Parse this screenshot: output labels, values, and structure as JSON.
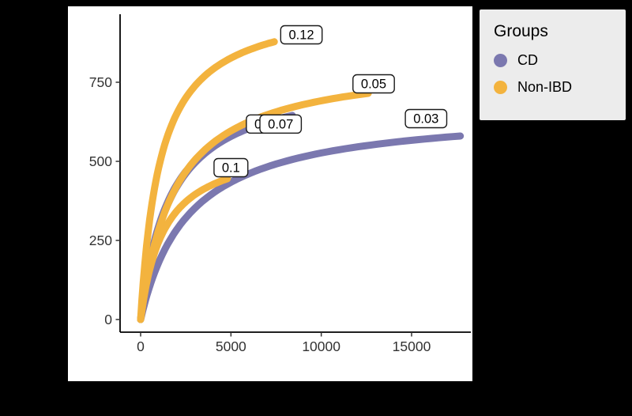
{
  "page": {
    "background": "#000000",
    "panel_background": "#FFFFFF"
  },
  "legend": {
    "title": "Groups",
    "background": "#ECECEC",
    "position": "top-right",
    "items": [
      {
        "label": "CD",
        "color": "#7B78AF"
      },
      {
        "label": "Non-IBD",
        "color": "#F3B33E"
      }
    ]
  },
  "chart_data": {
    "type": "line",
    "subtype": "rarefaction-curves",
    "title": "",
    "xlabel": "",
    "ylabel": "",
    "x_ticks": [
      0,
      5000,
      10000,
      15000
    ],
    "y_ticks": [
      0,
      250,
      500,
      750
    ],
    "xlim": [
      -1150,
      18350
    ],
    "ylim": [
      -40,
      970
    ],
    "grid": "off",
    "axis_color": "#000000",
    "tick_label_color": "#333333",
    "curve_model": "y = A*x/(k+x) with A = y_end*(k+x_end)/x_end (saturating rarefaction curve from origin)",
    "groups": {
      "CD": "#7B78AF",
      "Non-IBD": "#F3B33E"
    },
    "series": [
      {
        "group": "Non-IBD",
        "label": "0.1",
        "x_end": 4800,
        "y_end": 445,
        "k": 1300,
        "label_x": 5000,
        "label_y": 480
      },
      {
        "group": "CD",
        "label": "0.06",
        "x_end": 7200,
        "y_end": 628,
        "k": 1600,
        "label_x": 7000,
        "label_y": 618
      },
      {
        "group": "CD",
        "label": "0.07",
        "x_end": 8400,
        "y_end": 645,
        "k": 1700,
        "label_x": 7750,
        "label_y": 618
      },
      {
        "group": "Non-IBD",
        "label": "0.12",
        "x_end": 7400,
        "y_end": 878,
        "k": 1100,
        "label_x": 8900,
        "label_y": 900
      },
      {
        "group": "Non-IBD",
        "label": "0.05",
        "x_end": 12600,
        "y_end": 715,
        "k": 1900,
        "label_x": 12900,
        "label_y": 745
      },
      {
        "group": "CD",
        "label": "0.03",
        "x_end": 17700,
        "y_end": 580,
        "k": 2700,
        "label_x": 15800,
        "label_y": 635
      }
    ],
    "label_box": {
      "fill": "#FFFFFF",
      "border": "#1A1A1A",
      "text_color": "#000000"
    }
  }
}
